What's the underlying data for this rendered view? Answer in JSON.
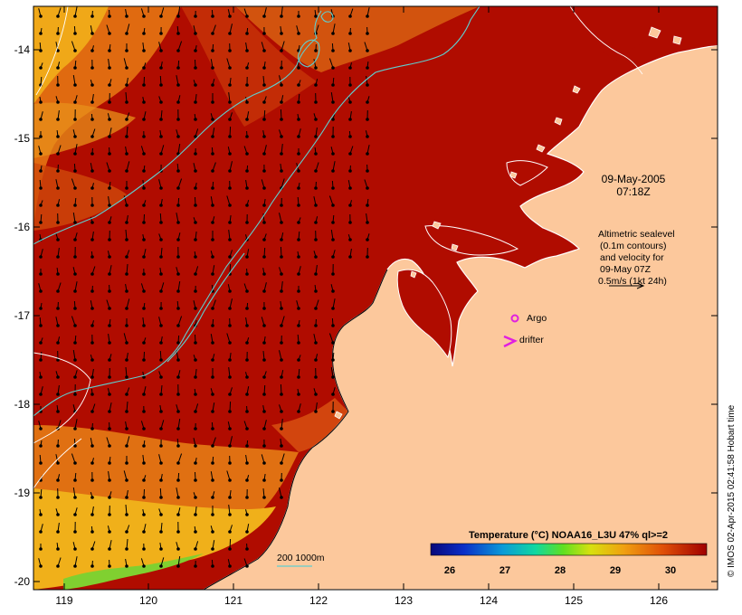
{
  "map": {
    "timestamp_date": "09-May-2005",
    "timestamp_time": "07:18Z",
    "x_ticks": [
      "119",
      "120",
      "121",
      "122",
      "123",
      "124",
      "125",
      "126"
    ],
    "y_ticks": [
      "-14",
      "-15",
      "-16",
      "-17",
      "-18",
      "-19",
      "-20"
    ],
    "altimetry_lines": [
      "Altimetric sealevel",
      "(0.1m contours)",
      "and velocity for",
      "09-May 07Z",
      "0.5m/s (1kt 24h)"
    ],
    "legend": {
      "argo_label": "Argo",
      "drifter_label": "drifter",
      "argo_color": "#e020e0",
      "drifter_color": "#e020e0"
    },
    "depth_label": "200  1000m",
    "colorbar": {
      "title": "Temperature (°C) NOAA16_L3U 47% ql>=2",
      "ticks": [
        "26",
        "27",
        "28",
        "29",
        "30"
      ],
      "stops": [
        "#08087a",
        "#0a2ec8",
        "#0a9ad8",
        "#10d8a0",
        "#60e020",
        "#d8e010",
        "#f0a010",
        "#e05008",
        "#a00000"
      ]
    },
    "credit": "© IMOS 02-Apr-2015 02:41:58 Hobart time",
    "colors": {
      "land": "#fcc89c",
      "sea_warm": "#b00c00",
      "sea_orange": "#e06a10",
      "sea_yellow": "#f0b018",
      "contour": "#5fcfcf"
    }
  }
}
